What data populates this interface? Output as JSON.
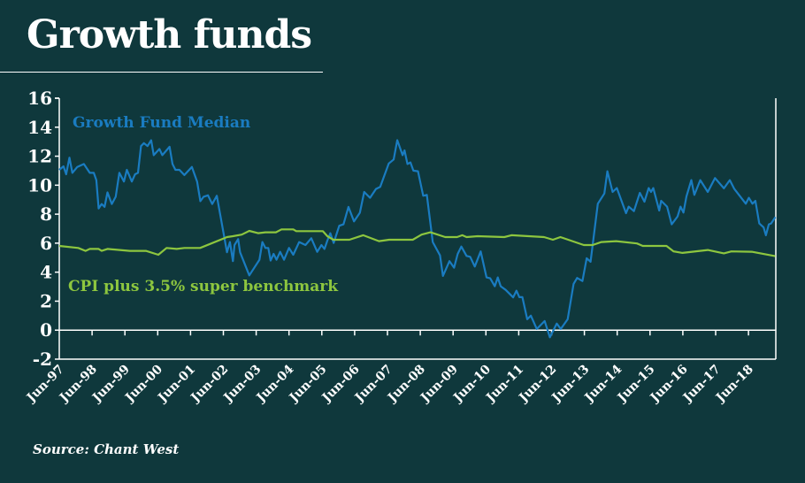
{
  "header": {
    "title": "Growth funds"
  },
  "footer": {
    "source": "Source: Chant West"
  },
  "chart_data": {
    "type": "line",
    "title": "Growth funds",
    "xlabel": "",
    "ylabel": "",
    "ylim": [
      -2,
      16
    ],
    "yticks": [
      "16",
      "14",
      "12",
      "10",
      "8",
      "6",
      "4",
      "2",
      "0",
      "-2"
    ],
    "xtick_labels": [
      "Jun-97",
      "Jun-98",
      "Jun-99",
      "Jun-00",
      "Jun-01",
      "Jun-02",
      "Jun-03",
      "Jun-04",
      "Jun-05",
      "Jun-06",
      "Jun-07",
      "Jun-08",
      "Jun-09",
      "Jun-10",
      "Jun-11",
      "Jun-12",
      "Jun-13",
      "Jun-14",
      "Jun-15",
      "Jun-16",
      "Jun-17",
      "Jun-18"
    ],
    "x_unit": "years since Jun-97",
    "xlim": [
      0,
      21.83
    ],
    "grid": false,
    "series": [
      {
        "name": "Growth Fund Median",
        "color": "#1a7cc1",
        "label_position": "top-left",
        "points": [
          [
            0,
            11.06
          ],
          [
            0.13,
            11.3
          ],
          [
            0.21,
            10.75
          ],
          [
            0.31,
            11.9
          ],
          [
            0.4,
            10.85
          ],
          [
            0.55,
            11.26
          ],
          [
            0.75,
            11.46
          ],
          [
            0.93,
            10.85
          ],
          [
            1.05,
            10.85
          ],
          [
            1.13,
            10.35
          ],
          [
            1.2,
            8.4
          ],
          [
            1.29,
            8.7
          ],
          [
            1.38,
            8.5
          ],
          [
            1.47,
            9.5
          ],
          [
            1.6,
            8.7
          ],
          [
            1.72,
            9.2
          ],
          [
            1.83,
            10.85
          ],
          [
            1.97,
            10.25
          ],
          [
            2.06,
            11.06
          ],
          [
            2.21,
            10.25
          ],
          [
            2.31,
            10.75
          ],
          [
            2.4,
            10.85
          ],
          [
            2.49,
            12.7
          ],
          [
            2.58,
            12.9
          ],
          [
            2.69,
            12.7
          ],
          [
            2.8,
            13.1
          ],
          [
            2.88,
            12.07
          ],
          [
            3.05,
            12.5
          ],
          [
            3.14,
            12.07
          ],
          [
            3.23,
            12.3
          ],
          [
            3.36,
            12.65
          ],
          [
            3.45,
            11.46
          ],
          [
            3.54,
            11.06
          ],
          [
            3.66,
            11.06
          ],
          [
            3.81,
            10.7
          ],
          [
            4.04,
            11.26
          ],
          [
            4.2,
            10.25
          ],
          [
            4.3,
            8.9
          ],
          [
            4.4,
            9.2
          ],
          [
            4.53,
            9.3
          ],
          [
            4.66,
            8.7
          ],
          [
            4.8,
            9.27
          ],
          [
            5.11,
            5.37
          ],
          [
            5.2,
            6.08
          ],
          [
            5.29,
            4.76
          ],
          [
            5.34,
            5.87
          ],
          [
            5.45,
            6.28
          ],
          [
            5.51,
            5.37
          ],
          [
            5.79,
            3.78
          ],
          [
            6.1,
            4.86
          ],
          [
            6.19,
            6.08
          ],
          [
            6.28,
            5.67
          ],
          [
            6.37,
            5.67
          ],
          [
            6.44,
            4.8
          ],
          [
            6.53,
            5.26
          ],
          [
            6.62,
            4.86
          ],
          [
            6.73,
            5.4
          ],
          [
            6.85,
            4.86
          ],
          [
            7.0,
            5.67
          ],
          [
            7.13,
            5.2
          ],
          [
            7.31,
            6.08
          ],
          [
            7.5,
            5.87
          ],
          [
            7.68,
            6.34
          ],
          [
            7.86,
            5.4
          ],
          [
            7.99,
            5.87
          ],
          [
            8.08,
            5.6
          ],
          [
            8.17,
            6.18
          ],
          [
            8.26,
            6.69
          ],
          [
            8.36,
            6.02
          ],
          [
            8.53,
            7.2
          ],
          [
            8.66,
            7.3
          ],
          [
            8.81,
            8.5
          ],
          [
            8.98,
            7.5
          ],
          [
            9.16,
            8.1
          ],
          [
            9.29,
            9.53
          ],
          [
            9.47,
            9.13
          ],
          [
            9.65,
            9.74
          ],
          [
            9.78,
            9.88
          ],
          [
            10.04,
            11.5
          ],
          [
            10.19,
            11.77
          ],
          [
            10.3,
            13.1
          ],
          [
            10.46,
            12.07
          ],
          [
            10.52,
            12.4
          ],
          [
            10.61,
            11.46
          ],
          [
            10.7,
            11.57
          ],
          [
            10.79,
            11.0
          ],
          [
            10.93,
            10.96
          ],
          [
            11.09,
            9.27
          ],
          [
            11.2,
            9.33
          ],
          [
            11.38,
            6.08
          ],
          [
            11.6,
            5.16
          ],
          [
            11.69,
            3.74
          ],
          [
            11.89,
            4.76
          ],
          [
            12.03,
            4.31
          ],
          [
            12.14,
            5.26
          ],
          [
            12.25,
            5.77
          ],
          [
            12.41,
            5.12
          ],
          [
            12.52,
            5.06
          ],
          [
            12.66,
            4.39
          ],
          [
            12.84,
            5.43
          ],
          [
            13.02,
            3.64
          ],
          [
            13.13,
            3.58
          ],
          [
            13.27,
            3.03
          ],
          [
            13.36,
            3.64
          ],
          [
            13.45,
            3.03
          ],
          [
            13.6,
            2.78
          ],
          [
            13.83,
            2.26
          ],
          [
            13.93,
            2.72
          ],
          [
            14.02,
            2.28
          ],
          [
            14.11,
            2.28
          ],
          [
            14.26,
            0.75
          ],
          [
            14.37,
            1.0
          ],
          [
            14.55,
            0.08
          ],
          [
            14.79,
            0.63
          ],
          [
            14.95,
            -0.49
          ],
          [
            15.16,
            0.45
          ],
          [
            15.28,
            0.08
          ],
          [
            15.49,
            0.75
          ],
          [
            15.67,
            3.19
          ],
          [
            15.78,
            3.6
          ],
          [
            15.94,
            3.39
          ],
          [
            16.07,
            4.96
          ],
          [
            16.19,
            4.72
          ],
          [
            16.41,
            8.72
          ],
          [
            16.61,
            9.43
          ],
          [
            16.7,
            10.96
          ],
          [
            16.86,
            9.53
          ],
          [
            16.99,
            9.8
          ],
          [
            17.27,
            8.07
          ],
          [
            17.35,
            8.52
          ],
          [
            17.51,
            8.21
          ],
          [
            17.69,
            9.47
          ],
          [
            17.83,
            8.86
          ],
          [
            17.96,
            9.8
          ],
          [
            18.03,
            9.53
          ],
          [
            18.1,
            9.8
          ],
          [
            18.28,
            8.25
          ],
          [
            18.34,
            8.92
          ],
          [
            18.52,
            8.52
          ],
          [
            18.66,
            7.3
          ],
          [
            18.84,
            7.85
          ],
          [
            18.93,
            8.52
          ],
          [
            19.02,
            8.11
          ],
          [
            19.11,
            9.23
          ],
          [
            19.26,
            10.35
          ],
          [
            19.35,
            9.33
          ],
          [
            19.53,
            10.35
          ],
          [
            19.76,
            9.53
          ],
          [
            19.98,
            10.49
          ],
          [
            20.25,
            9.78
          ],
          [
            20.43,
            10.35
          ],
          [
            20.57,
            9.74
          ],
          [
            20.92,
            8.72
          ],
          [
            21.01,
            9.13
          ],
          [
            21.12,
            8.72
          ],
          [
            21.21,
            8.92
          ],
          [
            21.33,
            7.36
          ],
          [
            21.46,
            7.09
          ],
          [
            21.53,
            6.54
          ],
          [
            21.62,
            7.3
          ],
          [
            21.69,
            7.36
          ],
          [
            21.82,
            7.8
          ]
        ]
      },
      {
        "name": "CPI plus 3.5% super benchmark",
        "color": "#8dc63f",
        "label_position": "left-middle",
        "points": [
          [
            0,
            5.81
          ],
          [
            0.58,
            5.67
          ],
          [
            0.8,
            5.47
          ],
          [
            0.93,
            5.6
          ],
          [
            1.2,
            5.6
          ],
          [
            1.29,
            5.47
          ],
          [
            1.47,
            5.6
          ],
          [
            2.15,
            5.47
          ],
          [
            2.64,
            5.47
          ],
          [
            3.02,
            5.2
          ],
          [
            3.27,
            5.67
          ],
          [
            3.58,
            5.6
          ],
          [
            3.81,
            5.67
          ],
          [
            4.29,
            5.67
          ],
          [
            5.11,
            6.42
          ],
          [
            5.29,
            6.48
          ],
          [
            5.56,
            6.59
          ],
          [
            5.79,
            6.85
          ],
          [
            6.06,
            6.69
          ],
          [
            6.28,
            6.75
          ],
          [
            6.6,
            6.75
          ],
          [
            6.77,
            6.95
          ],
          [
            7.13,
            6.95
          ],
          [
            7.22,
            6.83
          ],
          [
            8.03,
            6.83
          ],
          [
            8.17,
            6.48
          ],
          [
            8.35,
            6.24
          ],
          [
            8.84,
            6.24
          ],
          [
            9.26,
            6.55
          ],
          [
            9.74,
            6.14
          ],
          [
            10.05,
            6.24
          ],
          [
            10.77,
            6.24
          ],
          [
            11.04,
            6.59
          ],
          [
            11.31,
            6.75
          ],
          [
            11.76,
            6.42
          ],
          [
            12.12,
            6.42
          ],
          [
            12.28,
            6.55
          ],
          [
            12.41,
            6.42
          ],
          [
            12.75,
            6.48
          ],
          [
            13.56,
            6.42
          ],
          [
            13.78,
            6.55
          ],
          [
            14.77,
            6.42
          ],
          [
            15.04,
            6.24
          ],
          [
            15.27,
            6.42
          ],
          [
            15.98,
            5.87
          ],
          [
            16.25,
            5.87
          ],
          [
            16.52,
            6.08
          ],
          [
            16.97,
            6.14
          ],
          [
            17.6,
            5.98
          ],
          [
            17.78,
            5.81
          ],
          [
            18.5,
            5.81
          ],
          [
            18.72,
            5.43
          ],
          [
            18.99,
            5.33
          ],
          [
            19.76,
            5.53
          ],
          [
            20.25,
            5.3
          ],
          [
            20.48,
            5.43
          ],
          [
            21.1,
            5.41
          ],
          [
            21.82,
            5.1
          ]
        ]
      }
    ]
  }
}
